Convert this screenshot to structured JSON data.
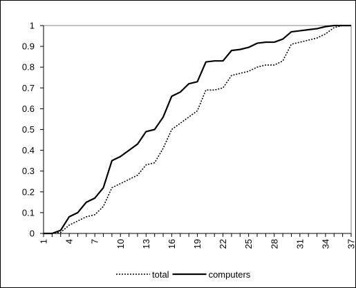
{
  "chart_data": {
    "type": "line",
    "title": "",
    "xlabel": "",
    "ylabel": "",
    "x": [
      1,
      2,
      3,
      4,
      5,
      6,
      7,
      8,
      9,
      10,
      11,
      12,
      13,
      14,
      15,
      16,
      17,
      18,
      19,
      20,
      21,
      22,
      23,
      24,
      25,
      26,
      27,
      28,
      29,
      30,
      31,
      32,
      33,
      34,
      35,
      36,
      37
    ],
    "x_tick_labels": [
      "1",
      "4",
      "7",
      "10",
      "13",
      "16",
      "19",
      "22",
      "25",
      "28",
      "31",
      "34",
      "37"
    ],
    "y_tick_labels": [
      "0",
      "0.1",
      "0.2",
      "0.3",
      "0.4",
      "0.5",
      "0.6",
      "0.7",
      "0.8",
      "0.9",
      "1"
    ],
    "ylim": [
      0,
      1
    ],
    "grid": false,
    "legend_position": "bottom",
    "series": [
      {
        "name": "total",
        "style": "dotted",
        "color": "#000000",
        "values": [
          0,
          0,
          0.005,
          0.04,
          0.06,
          0.08,
          0.09,
          0.13,
          0.22,
          0.24,
          0.26,
          0.28,
          0.33,
          0.34,
          0.41,
          0.5,
          0.53,
          0.56,
          0.59,
          0.69,
          0.69,
          0.7,
          0.76,
          0.77,
          0.78,
          0.8,
          0.81,
          0.81,
          0.83,
          0.91,
          0.92,
          0.93,
          0.94,
          0.96,
          0.99,
          1,
          1
        ]
      },
      {
        "name": "computers",
        "style": "solid",
        "color": "#000000",
        "values": [
          0,
          0,
          0.015,
          0.08,
          0.1,
          0.15,
          0.17,
          0.22,
          0.35,
          0.37,
          0.4,
          0.43,
          0.49,
          0.5,
          0.56,
          0.66,
          0.68,
          0.72,
          0.73,
          0.825,
          0.83,
          0.83,
          0.88,
          0.885,
          0.895,
          0.915,
          0.92,
          0.92,
          0.935,
          0.97,
          0.975,
          0.98,
          0.985,
          0.995,
          1,
          1,
          1
        ]
      }
    ]
  }
}
